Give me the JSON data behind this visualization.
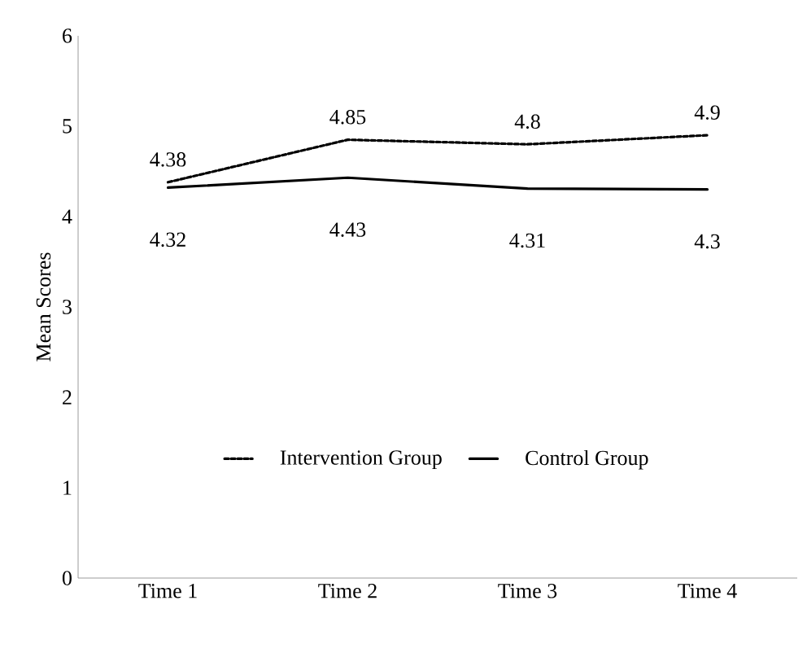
{
  "chart_data": {
    "type": "line",
    "categories": [
      "Time 1",
      "Time 2",
      "Time 3",
      "Time 4"
    ],
    "ylabel": "Mean Scores",
    "series": [
      {
        "name": "Intervention Group",
        "color": "#000000",
        "line_style": "dashed",
        "values": [
          4.38,
          4.85,
          4.8,
          4.9
        ]
      },
      {
        "name": "Control Group",
        "color": "#000000",
        "line_style": "solid",
        "values": [
          4.32,
          4.43,
          4.31,
          4.3
        ]
      }
    ],
    "ylim": [
      0,
      6
    ],
    "yticks": [
      0,
      1,
      2,
      3,
      4,
      5,
      6
    ],
    "data_labels": true,
    "legend": "bottom",
    "grid": false,
    "marker": "none"
  }
}
